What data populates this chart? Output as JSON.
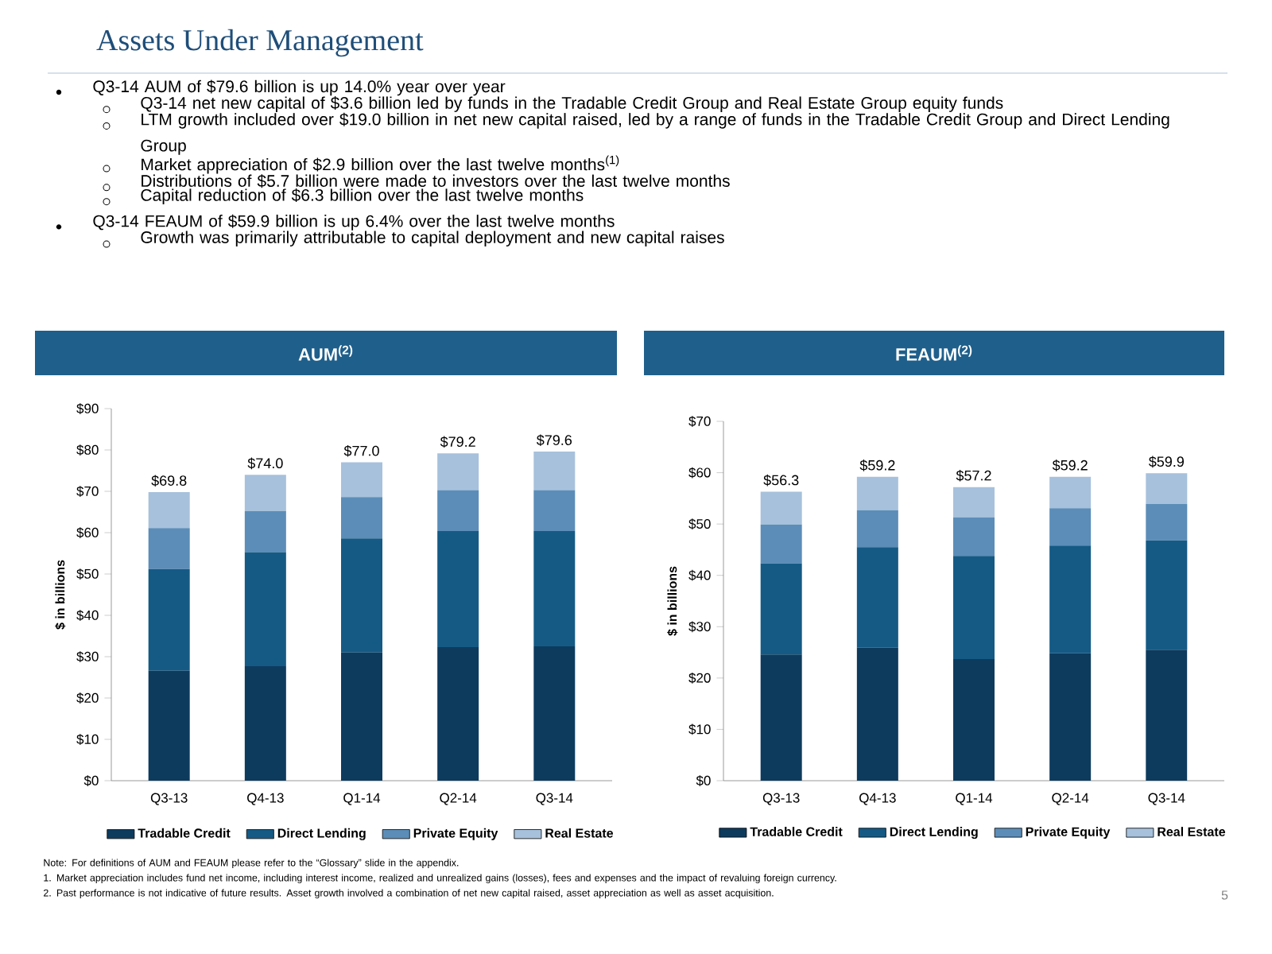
{
  "chart_data": [
    {
      "type": "other",
      "title": "Assets Under Management",
      "annotations": [
        "Q3-14 AUM of $79.6 billion is up 14.0% year over year",
        "Q3-14 net new capital of $3.6 billion led by funds in the Tradable Credit Group and Real Estate Group equity funds",
        "LTM growth included over $19.0 billion in net new capital raised, led by a range of funds in the Tradable Credit Group and Direct Lending Group",
        "Market appreciation of $2.9 billion over the last twelve months$^{(1)}$",
        "Distributions of $5.7 billion were made to investors over the last twelve months",
        "Capital reduction of $6.3 billion over the last twelve months",
        "Q3-14 FEAUM of $59.9 billion is up 6.4% over the last twelve months",
        "Growth was primarily attributable to capital deployment and new capital raises",
        "Note: For definitions of AUM and FEAUM please refer to the “Glossary” slide in the appendix.",
        "1.  Market appreciation includes fund net income, including interest income, realized and unrealized gains (losses), fees and expenses and the impact of revaluing foreign currency.",
        "2.  Past performance is not indicative of future results. Asset growth involved a combination of net new capital raised, asset appreciation as well as asset acquisition.",
        "5"
      ]
    },
    {
      "type": "bar",
      "stacked": true,
      "title": "AUM$^{(2)}$",
      "ylabel": "$ in billions",
      "legend": "bottom",
      "categories": [
        "Q3-13",
        "Q4-13",
        "Q1-14",
        "Q2-14",
        "Q3-14"
      ],
      "ylim": [
        0,
        90
      ],
      "yticks": [
        {
          "value": 0,
          "label": "$0"
        },
        {
          "value": 10,
          "label": "$10"
        },
        {
          "value": 20,
          "label": "$20"
        },
        {
          "value": 30,
          "label": "$30"
        },
        {
          "value": 40,
          "label": "$40"
        },
        {
          "value": 50,
          "label": "$50"
        },
        {
          "value": 60,
          "label": "$60"
        },
        {
          "value": 70,
          "label": "$70"
        },
        {
          "value": 80,
          "label": "$80"
        },
        {
          "value": 90,
          "label": "$90"
        }
      ],
      "totals": [
        "$69.8",
        "$74.0",
        "$77.0",
        "$79.2",
        "$79.6"
      ],
      "series": [
        {
          "name": "Tradable Credit",
          "color": "#0d3b5e",
          "values": [
            26.6,
            27.7,
            31.0,
            32.3,
            32.5
          ]
        },
        {
          "name": "Direct Lending",
          "color": "#155a85",
          "values": [
            24.6,
            27.6,
            27.6,
            28.1,
            27.9
          ]
        },
        {
          "name": "Private Equity",
          "color": "#5b8db8",
          "values": [
            9.9,
            9.9,
            10.0,
            9.9,
            9.9
          ]
        },
        {
          "name": "Real Estate",
          "color": "#a7c1dc",
          "values": [
            8.7,
            8.8,
            8.4,
            8.9,
            9.3
          ]
        }
      ]
    },
    {
      "type": "bar",
      "stacked": true,
      "title": "FEAUM$^{(2)}$",
      "ylabel": "$ in billions",
      "legend": "bottom",
      "categories": [
        "Q3-13",
        "Q4-13",
        "Q1-14",
        "Q2-14",
        "Q3-14"
      ],
      "ylim": [
        0,
        70
      ],
      "yticks": [
        {
          "value": 0,
          "label": "$0"
        },
        {
          "value": 10,
          "label": "$10"
        },
        {
          "value": 20,
          "label": "$20"
        },
        {
          "value": 30,
          "label": "$30"
        },
        {
          "value": 40,
          "label": "$40"
        },
        {
          "value": 50,
          "label": "$50"
        },
        {
          "value": 60,
          "label": "$60"
        },
        {
          "value": 70,
          "label": "$70"
        }
      ],
      "totals": [
        "$56.3",
        "$59.2",
        "$57.2",
        "$59.2",
        "$59.9"
      ],
      "series": [
        {
          "name": "Tradable Credit",
          "color": "#0d3b5e",
          "values": [
            24.6,
            25.9,
            23.7,
            24.8,
            25.5
          ]
        },
        {
          "name": "Direct Lending",
          "color": "#155a85",
          "values": [
            17.7,
            19.6,
            20.1,
            21.0,
            21.3
          ]
        },
        {
          "name": "Private Equity",
          "color": "#5b8db8",
          "values": [
            7.6,
            7.2,
            7.5,
            7.3,
            7.1
          ]
        },
        {
          "name": "Real Estate",
          "color": "#a7c1dc",
          "values": [
            6.4,
            6.5,
            5.9,
            6.1,
            6.0
          ]
        }
      ]
    }
  ]
}
